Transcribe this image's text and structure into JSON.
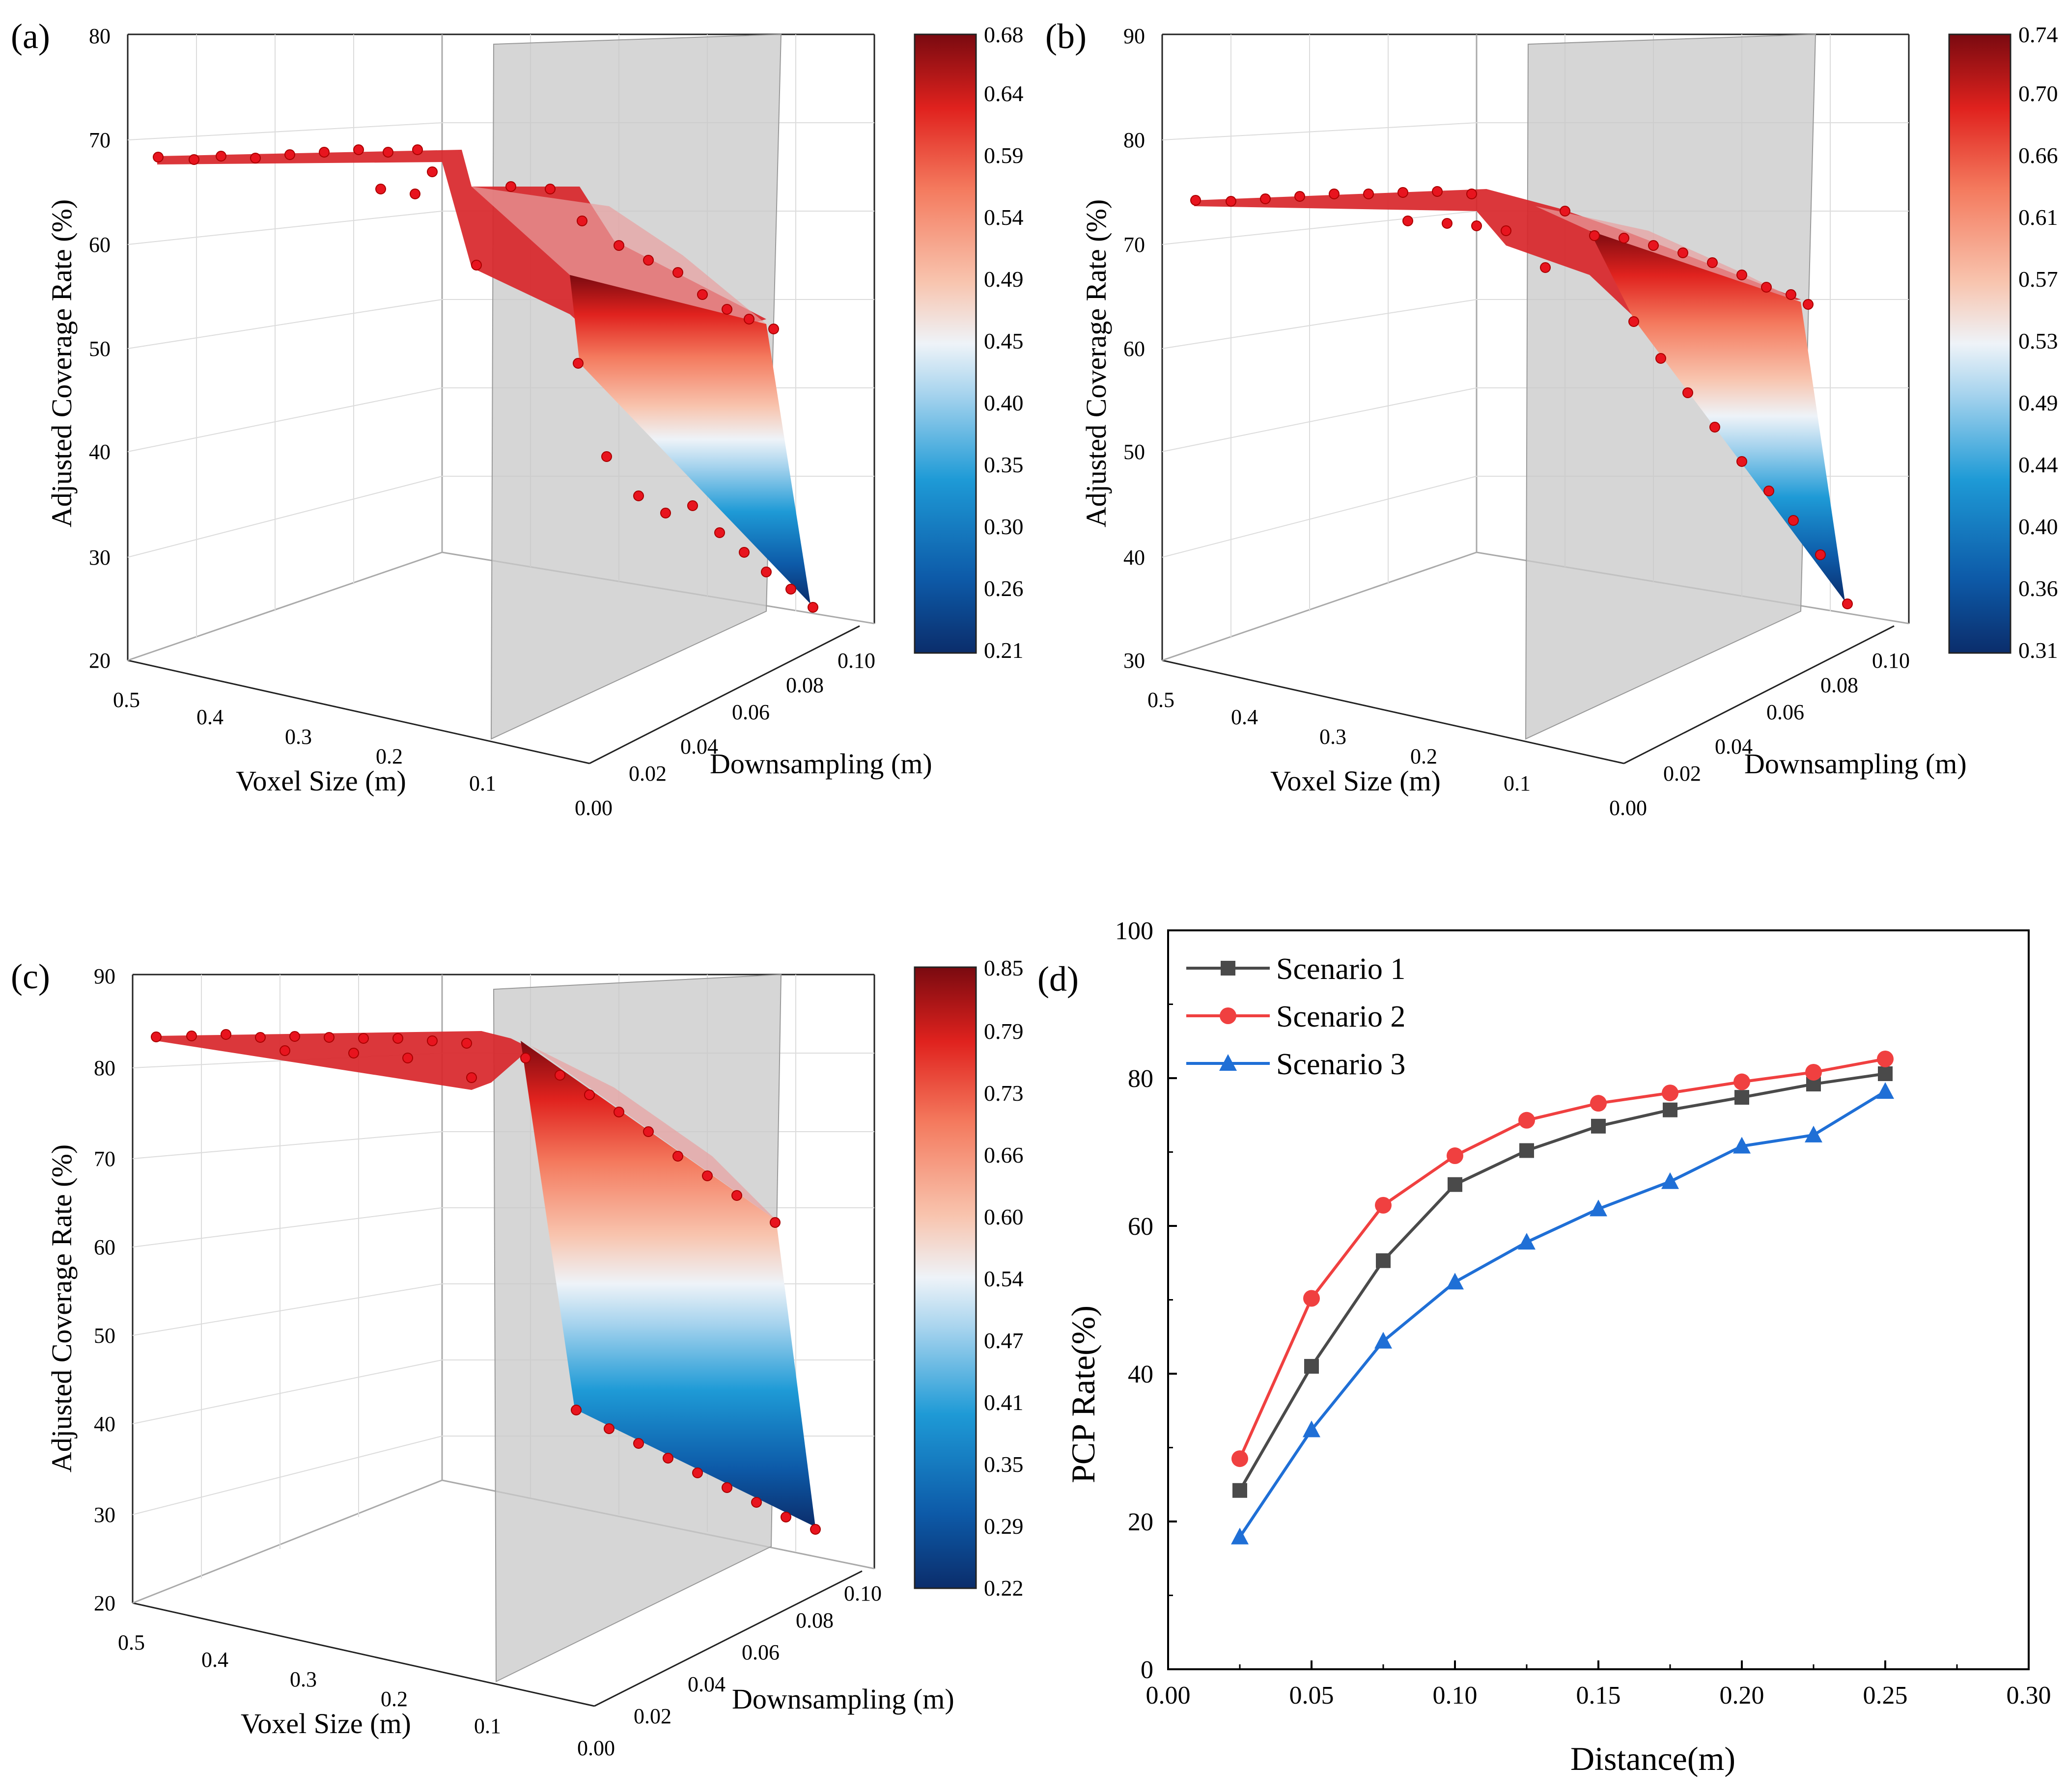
{
  "chart_data": [
    {
      "panel": "(a)",
      "type": "surface3d",
      "zlabel": "Adjusted Coverage Rate (%)",
      "xlabel": "Voxel Size (m)",
      "ylabel": "Downsampling (m)",
      "zticks": [
        "20",
        "30",
        "40",
        "50",
        "60",
        "70",
        "80"
      ],
      "zlim": [
        20,
        80
      ],
      "xticks": [
        "0.5",
        "0.4",
        "0.3",
        "0.2",
        "0.1"
      ],
      "yticks": [
        "0.00",
        "0.02",
        "0.04",
        "0.06",
        "0.08",
        "0.10"
      ],
      "colorbar": [
        "0.21",
        "0.26",
        "0.30",
        "0.35",
        "0.40",
        "0.45",
        "0.49",
        "0.54",
        "0.59",
        "0.64",
        "0.68"
      ],
      "plateau": 68.5,
      "upper_edge": 52.5,
      "lower_start": 49,
      "lower_end": 25
    },
    {
      "panel": "(b)",
      "type": "surface3d",
      "zlabel": "Adjusted Coverage Rate (%)",
      "xlabel": "Voxel Size (m)",
      "ylabel": "Downsampling (m)",
      "zticks": [
        "30",
        "40",
        "50",
        "60",
        "70",
        "80",
        "90"
      ],
      "zlim": [
        30,
        90
      ],
      "xticks": [
        "0.5",
        "0.4",
        "0.3",
        "0.2",
        "0.1"
      ],
      "yticks": [
        "0.00",
        "0.02",
        "0.04",
        "0.06",
        "0.08",
        "0.10"
      ],
      "colorbar": [
        "0.31",
        "0.36",
        "0.40",
        "0.44",
        "0.49",
        "0.53",
        "0.57",
        "0.61",
        "0.66",
        "0.70",
        "0.74"
      ],
      "plateau": 74.5,
      "upper_edge": 64.5,
      "lower_start": 63,
      "lower_end": 35
    },
    {
      "panel": "(c)",
      "type": "surface3d",
      "zlabel": "Adjusted Coverage Rate (%)",
      "xlabel": "Voxel Size (m)",
      "ylabel": "Downsampling (m)",
      "zticks": [
        "20",
        "30",
        "40",
        "50",
        "60",
        "70",
        "80",
        "90"
      ],
      "zlim": [
        20,
        90
      ],
      "xticks": [
        "0.5",
        "0.4",
        "0.3",
        "0.2",
        "0.1"
      ],
      "yticks": [
        "0.00",
        "0.02",
        "0.04",
        "0.06",
        "0.08",
        "0.10"
      ],
      "colorbar": [
        "0.22",
        "0.29",
        "0.35",
        "0.41",
        "0.47",
        "0.54",
        "0.60",
        "0.66",
        "0.73",
        "0.79",
        "0.85"
      ],
      "plateau": 83.5,
      "upper_edge": 62,
      "lower_start": 42,
      "lower_end": 28
    },
    {
      "panel": "(d)",
      "type": "line",
      "xlabel": "Distance(m)",
      "ylabel": "PCP Rate(%)",
      "xlim": [
        0,
        0.3
      ],
      "ylim": [
        0,
        100
      ],
      "xticks": [
        "0.00",
        "0.05",
        "0.10",
        "0.15",
        "0.20",
        "0.25",
        "0.30"
      ],
      "yticks": [
        "0",
        "20",
        "40",
        "60",
        "80",
        "100"
      ],
      "x": [
        0.025,
        0.05,
        0.075,
        0.1,
        0.125,
        0.15,
        0.175,
        0.2,
        0.225,
        0.25
      ],
      "series": [
        {
          "name": "Scenario 1",
          "color": "#4a4a4a",
          "marker": "square",
          "values": [
            24.2,
            41.0,
            55.3,
            65.6,
            70.2,
            73.5,
            75.7,
            77.4,
            79.2,
            80.6
          ]
        },
        {
          "name": "Scenario 2",
          "color": "#f04040",
          "marker": "circle",
          "values": [
            28.5,
            50.2,
            62.8,
            69.5,
            74.3,
            76.6,
            78.0,
            79.5,
            80.8,
            82.6
          ]
        },
        {
          "name": "Scenario 3",
          "color": "#1f6fd6",
          "marker": "triangle",
          "values": [
            17.9,
            32.4,
            44.4,
            52.4,
            57.8,
            62.3,
            66.0,
            70.8,
            72.3,
            78.2
          ]
        }
      ]
    }
  ]
}
